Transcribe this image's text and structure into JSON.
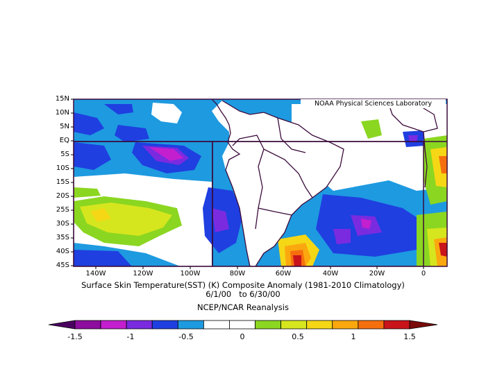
{
  "credit": "NOAA Physical Sciences Laboratory",
  "title_line1": "Surface Skin Temperature(SST) (K) Composite Anomaly (1981-2010 Climatology)",
  "title_line2": "6/1/00   to 6/30/00",
  "title_line3": "NCEP/NCAR Reanalysis",
  "lat_labels": [
    "15N",
    "10N",
    "5N",
    "EQ",
    "5S",
    "10S",
    "15S",
    "20S",
    "25S",
    "30S",
    "35S",
    "40S",
    "45S"
  ],
  "lon_labels": [
    "140W",
    "120W",
    "100W",
    "80W",
    "60W",
    "40W",
    "20W",
    "0"
  ],
  "colorbar": {
    "labels": [
      "-1.5",
      "-1",
      "-0.5",
      "0",
      "0.5",
      "1",
      "1.5"
    ],
    "colors": [
      "#4a0060",
      "#8c0d9e",
      "#c31fcf",
      "#7a2be0",
      "#1f3fe0",
      "#1e9ae0",
      "#ffffff",
      "#ffffff",
      "#8bd621",
      "#d6e61e",
      "#f5d716",
      "#fba80f",
      "#f66f0e",
      "#c8141a",
      "#7a0a0a"
    ]
  },
  "map_colors": {
    "white": "#ffffff",
    "lightblue": "#1e9ae0",
    "blue": "#1f3fe0",
    "indigo": "#7a2be0",
    "violet": "#c31fcf",
    "purple": "#8c0d9e",
    "lightgreen": "#8bd621",
    "yellowgreen": "#d6e61e",
    "yellow": "#f5d716",
    "orange": "#fba80f",
    "red": "#f66f0e",
    "darkred": "#c8141a",
    "coast": "#3a0a3a"
  }
}
